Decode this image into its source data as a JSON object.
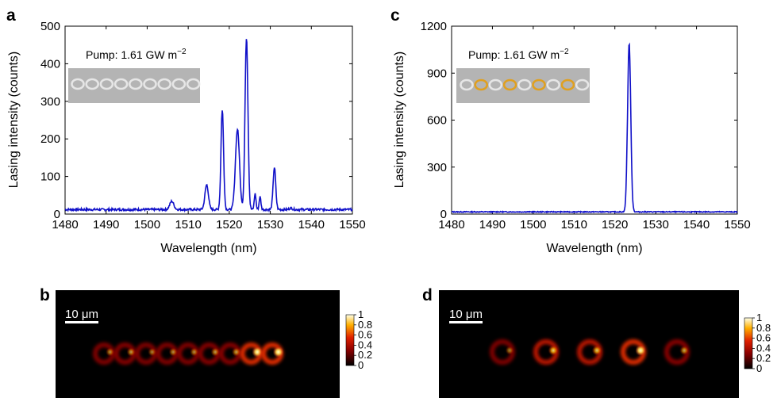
{
  "panels": {
    "a": "a",
    "b": "b",
    "c": "c",
    "d": "d"
  },
  "annotations": {
    "pump_a": "Pump: 1.61 GW m",
    "pump_c": "Pump: 1.61 GW m",
    "pump_exp": "−2",
    "scale_b": "10 μm",
    "scale_d": "10 μm"
  },
  "colorbar": {
    "ticks": [
      "1",
      "0.8",
      "0.6",
      "0.4",
      "0.2",
      "0"
    ],
    "tick_values": [
      1,
      0.8,
      0.6,
      0.4,
      0.2,
      0
    ]
  },
  "colors": {
    "line": "#1010c8",
    "ring_gray": "#e6e6e6",
    "ring_gold": "#e0a020",
    "inset_bg": "#b4b4b4",
    "map_bg": "#000000"
  },
  "chart_data": [
    {
      "type": "line",
      "panel": "a",
      "xlabel": "Wavelength (nm)",
      "ylabel": "Lasing intensity (counts)",
      "xlim": [
        1480,
        1550
      ],
      "ylim": [
        0,
        500
      ],
      "xticks": [
        1480,
        1490,
        1500,
        1510,
        1520,
        1530,
        1540,
        1550
      ],
      "yticks": [
        0,
        100,
        200,
        300,
        400,
        500
      ],
      "baseline": 12,
      "peaks": [
        {
          "x": 1506,
          "y": 28,
          "w": 0.7
        },
        {
          "x": 1514.5,
          "y": 72,
          "w": 0.6
        },
        {
          "x": 1518.3,
          "y": 272,
          "w": 0.45
        },
        {
          "x": 1522,
          "y": 220,
          "w": 0.7
        },
        {
          "x": 1524.2,
          "y": 465,
          "w": 0.5
        },
        {
          "x": 1526.3,
          "y": 48,
          "w": 0.3
        },
        {
          "x": 1527.5,
          "y": 40,
          "w": 0.3
        },
        {
          "x": 1531,
          "y": 118,
          "w": 0.45
        },
        {
          "x": 1535,
          "y": 10,
          "w": 0.5
        }
      ]
    },
    {
      "type": "line",
      "panel": "c",
      "xlabel": "Wavelength (nm)",
      "ylabel": "Lasing intensity (counts)",
      "xlim": [
        1480,
        1550
      ],
      "ylim": [
        0,
        1200
      ],
      "xticks": [
        1480,
        1490,
        1500,
        1510,
        1520,
        1530,
        1540,
        1550
      ],
      "yticks": [
        0,
        300,
        600,
        900,
        1200
      ],
      "baseline": 14,
      "peaks": [
        {
          "x": 1523.5,
          "y": 1085,
          "w": 0.55
        }
      ]
    },
    {
      "type": "heatmap",
      "panel": "b",
      "ring_count": 9,
      "ring_intensity": [
        0.55,
        0.6,
        0.5,
        0.55,
        0.55,
        0.6,
        0.62,
        0.95,
        1.0
      ]
    },
    {
      "type": "heatmap",
      "panel": "d",
      "ring_count": 5,
      "ring_intensity": [
        0.5,
        0.85,
        0.8,
        0.95,
        0.65
      ]
    }
  ]
}
